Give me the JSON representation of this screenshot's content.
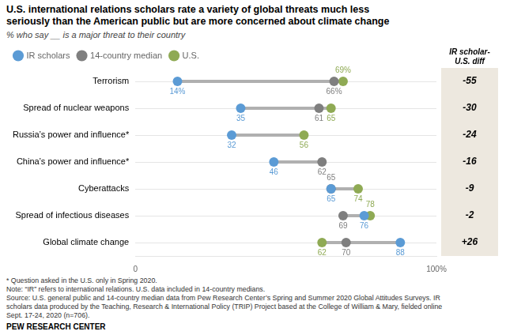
{
  "chart_data": {
    "type": "dot",
    "orientation": "horizontal",
    "title": [
      "U.S. international relations scholars rate a variety of global threats much less",
      "seriously than the American public but are more concerned about climate change"
    ],
    "subtitle": "% who say __ is a major threat to their country",
    "categories": [
      "Terrorism",
      "Spread of nuclear weapons",
      "Russia’s power and influence*",
      "China’s power and influence*",
      "Cyberattacks",
      "Spread of infectious diseases",
      "Global climate change"
    ],
    "series": [
      {
        "name": "IR scholars",
        "color": "#5b9bd5",
        "values": [
          14,
          35,
          32,
          46,
          65,
          76,
          88
        ],
        "value_labels": [
          "14%",
          "35",
          "32",
          "46",
          "65",
          "76",
          "88"
        ]
      },
      {
        "name": "14-country median",
        "color": "#7f7f7f",
        "values": [
          66,
          61,
          null,
          62,
          65,
          69,
          70
        ],
        "value_labels": [
          "66%",
          "61",
          null,
          "62",
          "65",
          "69",
          "70"
        ]
      },
      {
        "name": "U.S.",
        "color": "#8faa54",
        "values": [
          69,
          65,
          56,
          null,
          74,
          78,
          62
        ],
        "value_labels": [
          "69%",
          "65",
          "56",
          null,
          "74",
          "78",
          "62"
        ]
      }
    ],
    "diff": {
      "title": [
        "IR scholar-",
        "U.S. diff"
      ],
      "color": "#ede8df",
      "values": [
        -55,
        -30,
        -24,
        -16,
        -9,
        -2,
        26
      ],
      "value_labels": [
        "-55",
        "-30",
        "-24",
        "-16",
        "-9",
        "-2",
        "+26"
      ]
    },
    "xlim": [
      0,
      100
    ],
    "xticks": [
      0,
      {
        "value": 100,
        "label": "100%"
      }
    ],
    "grid": true,
    "legend": "top",
    "data_labels": true,
    "footnotes": [
      "* Question asked in the U.S. only in Spring 2020.",
      "Note: “IR” refers to international relations. U.S. data included in 14-country medians.",
      "Source: U.S. general public and 14-country median data from Pew Research Center’s Spring and Summer 2020 Global Attitudes Surveys. IR",
      "scholars data produced by the Teaching, Research & International Policy (TRIP) Project based at the College of William & Mary, fielded online",
      "Sept. 17-24, 2020 (n=706)."
    ],
    "source": "PEW RESEARCH CENTER"
  }
}
